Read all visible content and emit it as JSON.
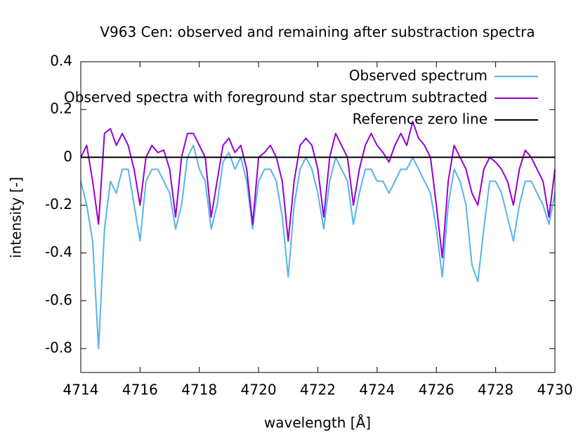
{
  "chart_data": {
    "type": "line",
    "title": "V963 Cen: observed and remaining after substraction spectra",
    "x_label": "wavelength [Å]",
    "y_label": "intensity [-]",
    "xlim": [
      4714,
      4730
    ],
    "ylim": [
      -0.9,
      0.4
    ],
    "xticks": [
      4714,
      4716,
      4718,
      4720,
      4722,
      4724,
      4726,
      4728,
      4730
    ],
    "yticks": [
      0.4,
      0.2,
      0,
      -0.2,
      -0.4,
      -0.6,
      -0.8
    ],
    "legend": "top-right",
    "x": [
      4714.0,
      4714.2,
      4714.4,
      4714.6,
      4714.8,
      4715.0,
      4715.2,
      4715.4,
      4715.6,
      4715.8,
      4716.0,
      4716.2,
      4716.4,
      4716.6,
      4716.8,
      4717.0,
      4717.2,
      4717.4,
      4717.6,
      4717.8,
      4718.0,
      4718.2,
      4718.4,
      4718.6,
      4718.8,
      4719.0,
      4719.2,
      4719.4,
      4719.6,
      4719.8,
      4720.0,
      4720.2,
      4720.4,
      4720.6,
      4720.8,
      4721.0,
      4721.2,
      4721.4,
      4721.6,
      4721.8,
      4722.0,
      4722.2,
      4722.4,
      4722.6,
      4722.8,
      4723.0,
      4723.2,
      4723.4,
      4723.6,
      4723.8,
      4724.0,
      4724.2,
      4724.4,
      4724.6,
      4724.8,
      4725.0,
      4725.2,
      4725.4,
      4725.6,
      4725.8,
      4726.0,
      4726.2,
      4726.4,
      4726.6,
      4726.8,
      4727.0,
      4727.2,
      4727.4,
      4727.6,
      4727.8,
      4728.0,
      4728.2,
      4728.4,
      4728.6,
      4728.8,
      4729.0,
      4729.2,
      4729.4,
      4729.6,
      4729.8,
      4730.0
    ],
    "series": [
      {
        "name": "Observed spectrum",
        "color": "#56b4e9",
        "values": [
          -0.1,
          -0.2,
          -0.35,
          -0.8,
          -0.3,
          -0.1,
          -0.15,
          -0.05,
          -0.05,
          -0.2,
          -0.35,
          -0.1,
          -0.05,
          -0.05,
          -0.1,
          -0.15,
          -0.3,
          -0.2,
          0.0,
          0.05,
          -0.05,
          -0.1,
          -0.3,
          -0.2,
          -0.02,
          0.02,
          -0.05,
          0.0,
          -0.1,
          -0.3,
          -0.1,
          -0.05,
          -0.05,
          -0.1,
          -0.25,
          -0.5,
          -0.2,
          -0.05,
          0.0,
          -0.05,
          -0.15,
          -0.3,
          -0.1,
          0.0,
          -0.05,
          -0.1,
          -0.28,
          -0.15,
          -0.05,
          -0.05,
          -0.1,
          -0.1,
          -0.15,
          -0.1,
          -0.05,
          -0.05,
          0.0,
          -0.05,
          -0.1,
          -0.15,
          -0.3,
          -0.5,
          -0.2,
          -0.05,
          -0.1,
          -0.2,
          -0.45,
          -0.52,
          -0.3,
          -0.1,
          -0.1,
          -0.15,
          -0.25,
          -0.35,
          -0.2,
          -0.1,
          -0.1,
          -0.15,
          -0.2,
          -0.28,
          -0.15
        ]
      },
      {
        "name": "Observed spectra with foreground star spectrum subtracted",
        "color": "#9400d3",
        "values": [
          0.0,
          0.05,
          -0.1,
          -0.28,
          0.1,
          0.12,
          0.05,
          0.1,
          0.05,
          -0.05,
          -0.2,
          0.0,
          0.05,
          0.02,
          0.03,
          -0.05,
          -0.25,
          0.0,
          0.1,
          0.1,
          0.05,
          0.0,
          -0.25,
          -0.1,
          0.05,
          0.08,
          0.02,
          0.05,
          -0.05,
          -0.28,
          0.0,
          0.02,
          0.05,
          0.0,
          -0.1,
          -0.35,
          -0.1,
          0.05,
          0.08,
          0.05,
          -0.05,
          -0.25,
          0.0,
          0.1,
          0.05,
          0.0,
          -0.2,
          -0.05,
          0.05,
          0.1,
          0.05,
          0.02,
          -0.02,
          0.05,
          0.1,
          0.05,
          0.15,
          0.08,
          0.05,
          0.0,
          -0.2,
          -0.42,
          -0.1,
          0.05,
          0.0,
          -0.05,
          -0.15,
          -0.2,
          -0.05,
          0.0,
          -0.02,
          -0.05,
          -0.1,
          -0.2,
          -0.05,
          0.03,
          0.0,
          -0.05,
          -0.1,
          -0.25,
          -0.05
        ]
      },
      {
        "name": "Reference zero line",
        "color": "#000000",
        "x": [
          4714,
          4730
        ],
        "values": [
          0,
          0
        ]
      }
    ]
  }
}
